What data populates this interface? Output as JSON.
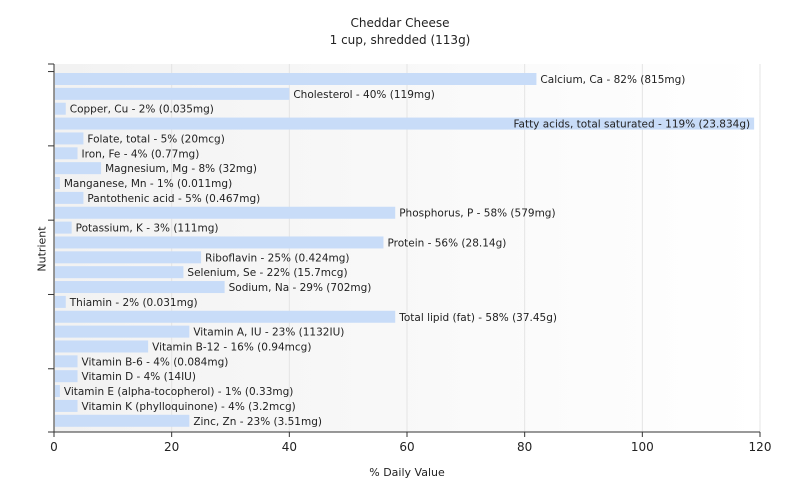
{
  "chart_data": {
    "type": "bar",
    "orientation": "horizontal",
    "title": "Cheddar Cheese",
    "subtitle": "1 cup, shredded (113g)",
    "xlabel": "% Daily Value",
    "ylabel": "Nutrient",
    "xlim": [
      0,
      120
    ],
    "xticks": [
      0,
      20,
      40,
      60,
      80,
      100,
      120
    ],
    "grid": true,
    "bar_color": "#c8dcf8",
    "categories": [
      "Calcium, Ca",
      "Cholesterol",
      "Copper, Cu",
      "Fatty acids, total saturated",
      "Folate, total",
      "Iron, Fe",
      "Magnesium, Mg",
      "Manganese, Mn",
      "Pantothenic acid",
      "Phosphorus, P",
      "Potassium, K",
      "Protein",
      "Riboflavin",
      "Selenium, Se",
      "Sodium, Na",
      "Thiamin",
      "Total lipid (fat)",
      "Vitamin A, IU",
      "Vitamin B-12",
      "Vitamin B-6",
      "Vitamin D",
      "Vitamin E (alpha-tocopherol)",
      "Vitamin K (phylloquinone)",
      "Zinc, Zn"
    ],
    "values": [
      82,
      40,
      2,
      119,
      5,
      4,
      8,
      1,
      5,
      58,
      3,
      56,
      25,
      22,
      29,
      2,
      58,
      23,
      16,
      4,
      4,
      1,
      4,
      23
    ],
    "labels": [
      "Calcium, Ca - 82% (815mg)",
      "Cholesterol - 40% (119mg)",
      "Copper, Cu - 2% (0.035mg)",
      "Fatty acids, total saturated - 119% (23.834g)",
      "Folate, total - 5% (20mcg)",
      "Iron, Fe - 4% (0.77mg)",
      "Magnesium, Mg - 8% (32mg)",
      "Manganese, Mn - 1% (0.011mg)",
      "Pantothenic acid - 5% (0.467mg)",
      "Phosphorus, P - 58% (579mg)",
      "Potassium, K - 3% (111mg)",
      "Protein - 56% (28.14g)",
      "Riboflavin - 25% (0.424mg)",
      "Selenium, Se - 22% (15.7mcg)",
      "Sodium, Na - 29% (702mg)",
      "Thiamin - 2% (0.031mg)",
      "Total lipid (fat) - 58% (37.45g)",
      "Vitamin A, IU - 23% (1132IU)",
      "Vitamin B-12 - 16% (0.94mcg)",
      "Vitamin B-6 - 4% (0.084mg)",
      "Vitamin D - 4% (14IU)",
      "Vitamin E (alpha-tocopherol) - 1% (0.33mg)",
      "Vitamin K (phylloquinone) - 4% (3.2mcg)",
      "Zinc, Zn - 23% (3.51mg)"
    ]
  }
}
